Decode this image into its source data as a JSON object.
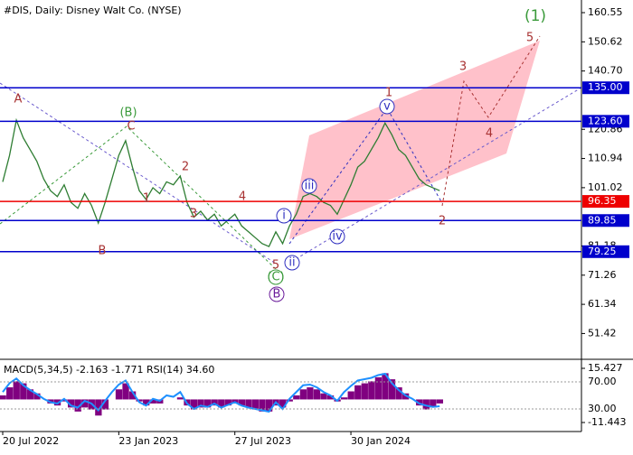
{
  "chart_data": {
    "type": "line",
    "title": "#DIS, Daily:  Disney Walt Co. (NYSE)",
    "categories": [
      "20 Jul 2022",
      null,
      null,
      null,
      null,
      null,
      null,
      null,
      null,
      null,
      null,
      null,
      null,
      null,
      null,
      null,
      null,
      "23 Jan 2023",
      null,
      null,
      null,
      null,
      null,
      null,
      null,
      null,
      null,
      null,
      null,
      null,
      null,
      null,
      null,
      null,
      "27 Jul 2023",
      null,
      null,
      null,
      null,
      null,
      null,
      null,
      null,
      null,
      null,
      null,
      null,
      null,
      null,
      null,
      null,
      "30 Jan 2024",
      null,
      null,
      null,
      null,
      null,
      null,
      null,
      null,
      null,
      null,
      null,
      null,
      null
    ],
    "series": [
      {
        "name": "DIS",
        "color": "#2e7d32",
        "values": [
          103,
          112,
          124,
          118,
          114,
          110,
          104,
          100,
          98,
          102,
          96,
          94,
          99,
          95,
          89,
          96,
          104,
          112,
          117,
          108,
          100,
          97,
          101,
          99,
          103,
          102,
          105,
          96,
          91,
          93,
          90,
          92,
          88,
          90,
          92,
          88,
          86,
          84,
          82,
          81,
          86,
          82,
          88,
          92,
          98,
          99,
          98,
          96,
          95,
          92,
          97,
          102,
          108,
          110,
          114,
          118,
          123,
          119,
          114,
          112,
          108,
          104,
          102,
          101,
          100
        ]
      }
    ],
    "ylim": [
      42.95,
      164.85
    ],
    "yticks": [
      160.55,
      150.62,
      {
        "value": 140.7,
        "label": "140.70"
      },
      120.86,
      110.94,
      101.02,
      81.18,
      71.26,
      61.34,
      51.42
    ],
    "levels": [
      {
        "value": 135,
        "label": "135.00",
        "color": "#0000cc"
      },
      {
        "value": 123.6,
        "label": "123.60",
        "color": "#0000cc"
      },
      {
        "value": 96.35,
        "label": "96.35",
        "color": "#ee0000"
      },
      {
        "value": 89.85,
        "label": "89.85",
        "color": "#0000cc"
      },
      {
        "value": 79.25,
        "label": "79.25",
        "color": "#0000cc"
      }
    ],
    "annotations": [
      {
        "text": "A",
        "color": "#a83232"
      },
      {
        "text": "B",
        "color": "#a83232"
      },
      {
        "text": "C",
        "color": "#a83232"
      },
      {
        "text": "(B)",
        "color": "#3a9a3a"
      },
      {
        "text": "1",
        "color": "#a83232"
      },
      {
        "text": "2",
        "color": "#a83232"
      },
      {
        "text": "3",
        "color": "#a83232"
      },
      {
        "text": "4",
        "color": "#a83232"
      },
      {
        "text": "5",
        "color": "#a83232"
      },
      {
        "text": "(C)",
        "color": "#3a9a3a"
      },
      {
        "text": "B",
        "color": "#6a1b9a"
      },
      {
        "text": "i",
        "color": "#3030c0"
      },
      {
        "text": "ii",
        "color": "#3030c0"
      },
      {
        "text": "iii",
        "color": "#3030c0"
      },
      {
        "text": "iv",
        "color": "#3030c0"
      },
      {
        "text": "v",
        "color": "#3030c0"
      },
      {
        "text": "1",
        "color": "#a83232"
      },
      {
        "text": "2",
        "color": "#a83232"
      },
      {
        "text": "3",
        "color": "#a83232"
      },
      {
        "text": "4",
        "color": "#a83232"
      },
      {
        "text": "5",
        "color": "#a83232"
      },
      {
        "text": "(1)",
        "color": "#3a9a3a"
      }
    ],
    "indicator": {
      "title": "MACD(5,34,5) -2.163 -1.771 RSI(14) 34.60",
      "macd": {
        "name": "MACD",
        "color": "#800080",
        "values": [
          2,
          6,
          9,
          8,
          5,
          3,
          0,
          -2,
          -3,
          -1,
          -4,
          -6,
          -4,
          -5,
          -8,
          -5,
          0,
          5,
          8,
          4,
          -1,
          -3,
          -2,
          -2,
          0,
          0,
          1,
          -3,
          -5,
          -4,
          -4,
          -3,
          -4,
          -3,
          -2,
          -3,
          -4,
          -5,
          -6,
          -6,
          -3,
          -4,
          -1,
          2,
          5,
          6,
          5,
          3,
          2,
          -1,
          1,
          4,
          7,
          8,
          9,
          11,
          13,
          10,
          6,
          3,
          0,
          -3,
          -5,
          -4,
          -2
        ]
      },
      "macd_ylim": [
        -15.92,
        18.56
      ],
      "macd_ticks": [
        15.427,
        -11.443
      ],
      "rsi": {
        "name": "RSI",
        "color": "#1e90ff",
        "values": [
          55,
          68,
          75,
          65,
          58,
          52,
          45,
          40,
          38,
          45,
          35,
          32,
          42,
          38,
          28,
          42,
          55,
          66,
          72,
          55,
          40,
          35,
          45,
          42,
          50,
          48,
          55,
          38,
          30,
          35,
          33,
          38,
          32,
          36,
          40,
          35,
          32,
          30,
          28,
          26,
          40,
          30,
          45,
          55,
          65,
          66,
          62,
          55,
          50,
          42,
          55,
          64,
          72,
          74,
          76,
          80,
          82,
          68,
          58,
          50,
          45,
          38,
          35,
          33,
          34
        ]
      },
      "rsi_ylim": [
        -3.3,
        99.3
      ],
      "rsi_ticks": [
        {
          "value": 70,
          "label": "70.00"
        },
        {
          "value": 30,
          "label": "30.00"
        }
      ]
    }
  }
}
